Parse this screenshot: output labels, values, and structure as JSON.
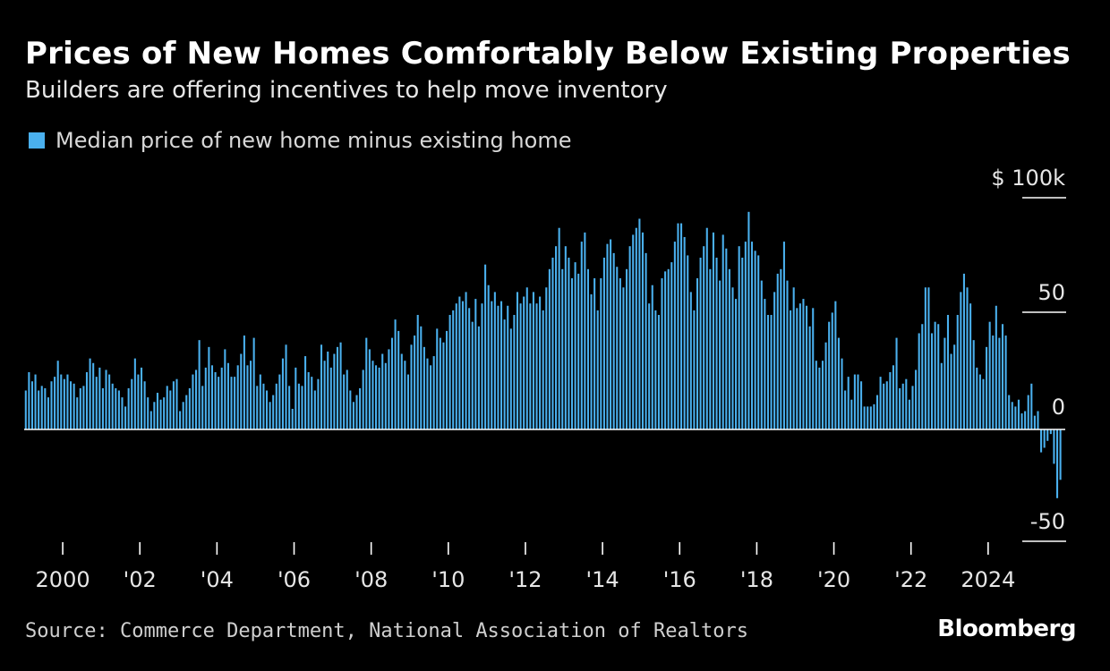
{
  "header": {
    "title": "Prices of New Homes Comfortably Below Existing Properties",
    "subtitle": "Builders are offering incentives to help move inventory"
  },
  "legend": {
    "label": "Median price of new home minus existing home",
    "color": "#4ab0ee"
  },
  "footer": {
    "source": "Source: Commerce Department, National Association of Realtors",
    "brand": "Bloomberg"
  },
  "chart_data": {
    "type": "bar",
    "title": "Prices of New Homes Comfortably Below Existing Properties",
    "subtitle": "Builders are offering incentives to help move inventory",
    "series_name": "Median price of new home minus existing home",
    "unit": "$ thousands",
    "y_axis": {
      "min": -50,
      "max": 100,
      "ticks": [
        {
          "value": 100,
          "label": "$ 100k"
        },
        {
          "value": 50,
          "label": "50"
        },
        {
          "value": 0,
          "label": "0"
        },
        {
          "value": -50,
          "label": "-50"
        }
      ],
      "position": "right"
    },
    "x_axis": {
      "start_year": 1999.0,
      "end_year": 2026.0,
      "ticks": [
        {
          "year": 2000,
          "label": "2000"
        },
        {
          "year": 2002,
          "label": "'02"
        },
        {
          "year": 2004,
          "label": "'04"
        },
        {
          "year": 2006,
          "label": "'06"
        },
        {
          "year": 2008,
          "label": "'08"
        },
        {
          "year": 2010,
          "label": "'10"
        },
        {
          "year": 2012,
          "label": "'12"
        },
        {
          "year": 2014,
          "label": "'14"
        },
        {
          "year": 2016,
          "label": "'16"
        },
        {
          "year": 2018,
          "label": "'18"
        },
        {
          "year": 2020,
          "label": "'20"
        },
        {
          "year": 2022,
          "label": "'22"
        },
        {
          "year": 2024,
          "label": "2024"
        }
      ]
    },
    "frequency": "monthly",
    "first_period": "1999-01",
    "yearly_values": [
      {
        "year": 1999,
        "values": [
          17,
          25,
          21,
          24,
          17,
          19,
          18,
          14,
          21,
          23,
          30,
          24
        ]
      },
      {
        "year": 2000,
        "values": [
          22,
          24,
          21,
          20,
          14,
          18,
          19,
          25,
          31,
          29,
          23,
          27
        ]
      },
      {
        "year": 2001,
        "values": [
          18,
          26,
          24,
          20,
          18,
          17,
          14,
          10,
          18,
          22,
          31,
          24
        ]
      },
      {
        "year": 2002,
        "values": [
          27,
          21,
          14,
          8,
          12,
          16,
          13,
          14,
          19,
          17,
          21,
          22
        ]
      },
      {
        "year": 2003,
        "values": [
          8,
          12,
          15,
          18,
          24,
          26,
          39,
          19,
          27,
          36,
          28,
          25
        ]
      },
      {
        "year": 2004,
        "values": [
          23,
          27,
          35,
          29,
          23,
          23,
          28,
          33,
          41,
          28,
          30,
          40
        ]
      },
      {
        "year": 2005,
        "values": [
          19,
          24,
          20,
          17,
          12,
          15,
          20,
          24,
          31,
          37,
          19,
          9
        ]
      },
      {
        "year": 2006,
        "values": [
          27,
          20,
          19,
          32,
          25,
          23,
          17,
          22,
          37,
          30,
          34,
          27
        ]
      },
      {
        "year": 2007,
        "values": [
          33,
          36,
          38,
          24,
          26,
          17,
          12,
          15,
          18,
          26,
          40,
          35
        ]
      },
      {
        "year": 2008,
        "values": [
          30,
          28,
          27,
          33,
          29,
          35,
          40,
          48,
          43,
          33,
          30,
          24
        ]
      },
      {
        "year": 2009,
        "values": [
          37,
          41,
          50,
          45,
          36,
          31,
          28,
          32,
          44,
          40,
          38,
          43
        ]
      },
      {
        "year": 2010,
        "values": [
          50,
          52,
          55,
          58,
          56,
          60,
          53,
          47,
          57,
          45,
          55,
          72
        ]
      },
      {
        "year": 2011,
        "values": [
          63,
          56,
          60,
          54,
          56,
          48,
          54,
          44,
          50,
          60,
          55,
          58
        ]
      },
      {
        "year": 2012,
        "values": [
          62,
          55,
          60,
          55,
          58,
          52,
          62,
          70,
          75,
          80,
          88,
          70
        ]
      },
      {
        "year": 2013,
        "values": [
          80,
          75,
          66,
          73,
          68,
          82,
          86,
          70,
          59,
          66,
          52,
          66
        ]
      },
      {
        "year": 2014,
        "values": [
          75,
          81,
          83,
          77,
          71,
          66,
          62,
          70,
          80,
          85,
          88,
          92
        ]
      },
      {
        "year": 2015,
        "values": [
          86,
          77,
          55,
          63,
          52,
          50,
          66,
          69,
          70,
          73,
          82,
          90
        ]
      },
      {
        "year": 2016,
        "values": [
          90,
          84,
          76,
          60,
          52,
          66,
          75,
          80,
          88,
          70,
          86,
          75
        ]
      },
      {
        "year": 2017,
        "values": [
          65,
          85,
          79,
          70,
          62,
          57,
          80,
          75,
          82,
          95,
          82,
          78
        ]
      },
      {
        "year": 2018,
        "values": [
          76,
          65,
          57,
          50,
          50,
          60,
          68,
          70,
          82,
          65,
          52,
          62
        ]
      },
      {
        "year": 2019,
        "values": [
          53,
          55,
          57,
          54,
          45,
          53,
          30,
          27,
          30,
          38,
          47,
          51
        ]
      },
      {
        "year": 2020,
        "values": [
          56,
          40,
          31,
          17,
          23,
          13,
          24,
          24,
          21,
          10,
          10,
          10
        ]
      },
      {
        "year": 2021,
        "values": [
          11,
          15,
          23,
          20,
          21,
          25,
          28,
          40,
          18,
          20,
          22,
          13
        ]
      },
      {
        "year": 2022,
        "values": [
          19,
          26,
          42,
          46,
          62,
          62,
          42,
          47,
          46,
          29,
          40,
          50
        ]
      },
      {
        "year": 2023,
        "values": [
          33,
          37,
          50,
          60,
          68,
          62,
          55,
          39,
          27,
          24,
          22,
          36
        ]
      },
      {
        "year": 2024,
        "values": [
          47,
          41,
          54,
          40,
          46,
          41,
          15,
          12,
          10,
          13,
          7,
          8
        ]
      },
      {
        "year": 2025,
        "values": [
          15,
          20,
          6,
          8,
          -10,
          -8,
          -5,
          -2,
          -15,
          -30,
          -22,
          0
        ]
      }
    ],
    "values_approximate": true
  }
}
